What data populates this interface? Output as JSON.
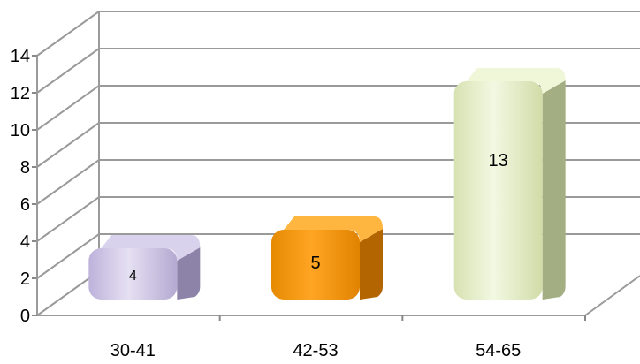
{
  "chart_data": {
    "type": "bar",
    "style": "3d-rounded-columns",
    "title": "",
    "xlabel": "",
    "ylabel": "",
    "categories": [
      "30-41",
      "42-53",
      "54-65"
    ],
    "values": [
      4,
      5,
      13
    ],
    "data_labels": [
      "4",
      "5",
      "13"
    ],
    "colors": [
      "#c8c0e0",
      "#f39200",
      "#e4edc6"
    ],
    "ylim": [
      0,
      14
    ],
    "yticks": [
      "0",
      "2",
      "4",
      "6",
      "8",
      "10",
      "12",
      "14"
    ],
    "grid": true,
    "legend": "none"
  }
}
